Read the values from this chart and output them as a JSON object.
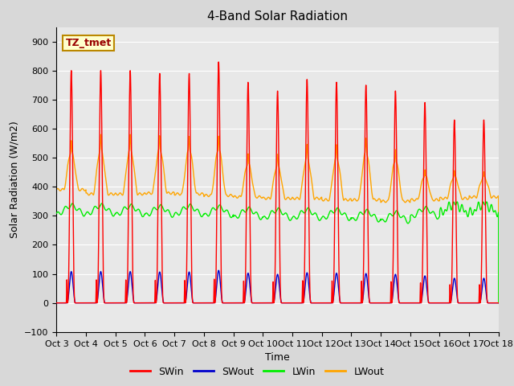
{
  "title": "4-Band Solar Radiation",
  "xlabel": "Time",
  "ylabel": "Solar Radiation (W/m2)",
  "ylim": [
    -100,
    950
  ],
  "xlim_days": [
    0,
    15
  ],
  "tick_labels": [
    "Oct 3",
    "Oct 4",
    "Oct 5",
    "Oct 6",
    "Oct 7",
    "Oct 8",
    "Oct 9",
    "Oct 10",
    "Oct 11",
    "Oct 12",
    "Oct 13",
    "Oct 14",
    "Oct 15",
    "Oct 16",
    "Oct 17",
    "Oct 18"
  ],
  "colors": {
    "SWin": "#FF0000",
    "SWout": "#0000CC",
    "LWin": "#00EE00",
    "LWout": "#FFA500"
  },
  "annotation_text": "TZ_tmet",
  "annotation_bg": "#FFFFCC",
  "annotation_border": "#BB8800",
  "fig_bg": "#D8D8D8",
  "plot_bg": "#E8E8E8",
  "title_fontsize": 11,
  "axis_fontsize": 9,
  "tick_fontsize": 8,
  "legend_fontsize": 9,
  "linewidth": 1.0,
  "sw_peaks": [
    800,
    800,
    800,
    790,
    790,
    830,
    760,
    730,
    770,
    760,
    750,
    730,
    690,
    630,
    630
  ],
  "lw_out_peaks": [
    520,
    530,
    530,
    530,
    530,
    530,
    480,
    475,
    500,
    500,
    520,
    490,
    430,
    420,
    410
  ],
  "lw_out_base": [
    390,
    375,
    375,
    378,
    375,
    370,
    365,
    360,
    360,
    355,
    355,
    350,
    355,
    360,
    365
  ],
  "lw_in_base": [
    320,
    320,
    318,
    316,
    318,
    315,
    308,
    305,
    305,
    305,
    300,
    295,
    310,
    325,
    325
  ]
}
